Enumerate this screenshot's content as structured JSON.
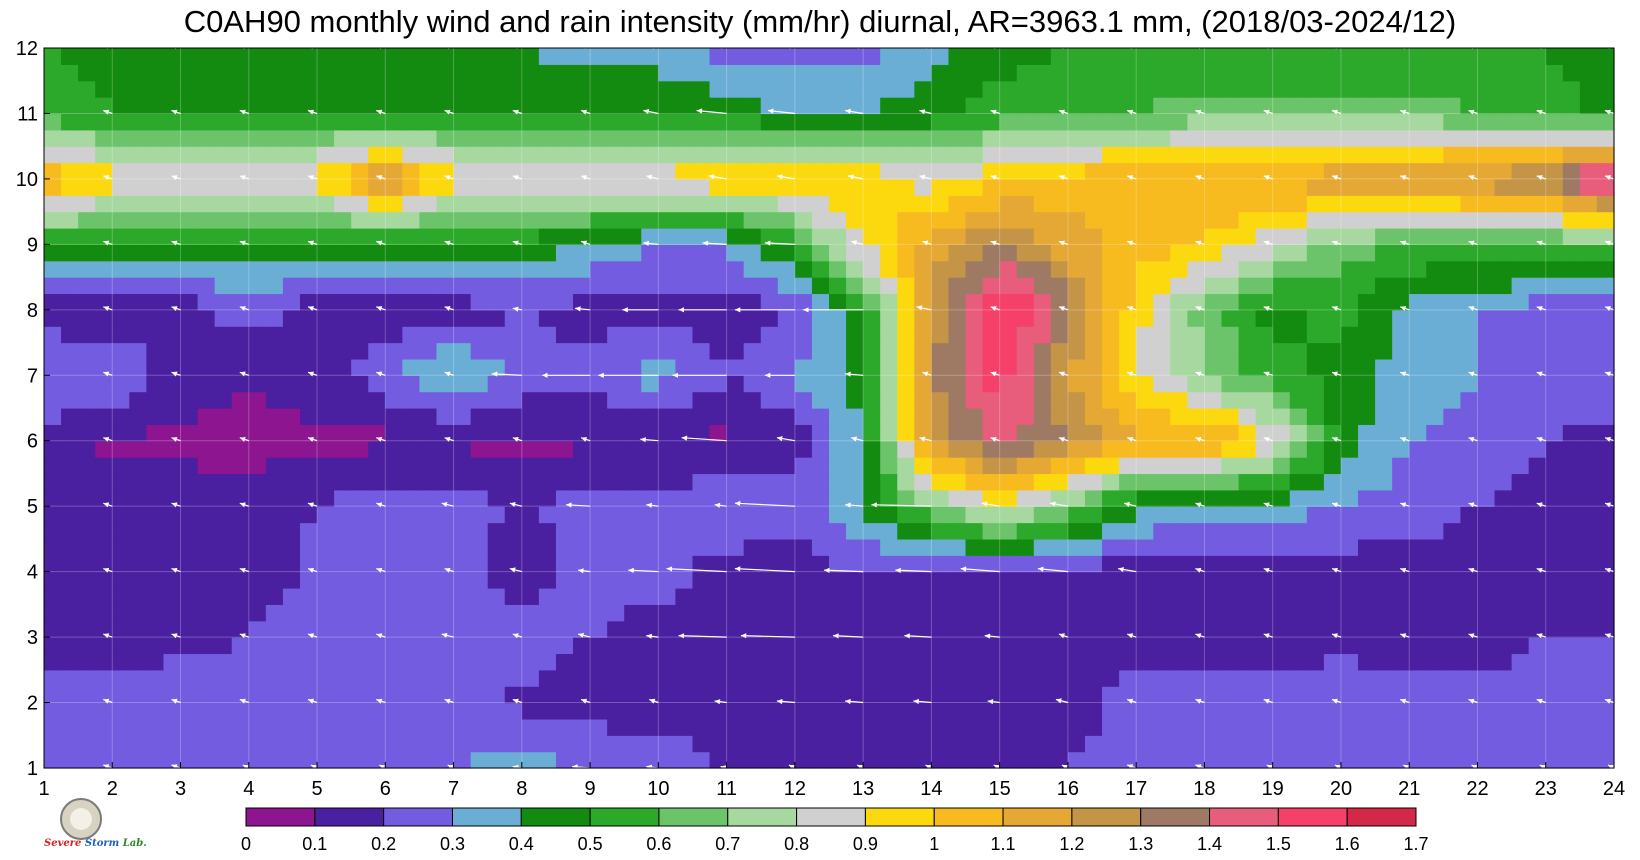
{
  "chart_data": {
    "type": "heatmap",
    "title": "C0AH90 monthly wind and rain intensity (mm/hr) diurnal, AR=3963.1 mm, (2018/03-2024/12)",
    "x_ticks": [
      "1",
      "2",
      "3",
      "4",
      "5",
      "6",
      "7",
      "8",
      "9",
      "10",
      "11",
      "12",
      "13",
      "14",
      "15",
      "16",
      "17",
      "18",
      "19",
      "20",
      "21",
      "22",
      "23",
      "24"
    ],
    "y_ticks": [
      "1",
      "2",
      "3",
      "4",
      "5",
      "6",
      "7",
      "8",
      "9",
      "10",
      "11",
      "12"
    ],
    "xlim": [
      1,
      24
    ],
    "ylim": [
      1,
      12
    ],
    "grid": true,
    "x_values": [
      1,
      2,
      3,
      4,
      5,
      6,
      7,
      8,
      9,
      10,
      11,
      12,
      13,
      14,
      15,
      16,
      17,
      18,
      19,
      20,
      21,
      22,
      23,
      24
    ],
    "y_values": [
      1,
      2,
      3,
      4,
      5,
      6,
      7,
      8,
      9,
      10,
      11,
      12
    ],
    "z": [
      [
        0.25,
        0.25,
        0.25,
        0.25,
        0.25,
        0.25,
        0.3,
        0.35,
        0.3,
        0.25,
        0.2,
        0.15,
        0.15,
        0.15,
        0.15,
        0.2,
        0.25,
        0.25,
        0.3,
        0.25,
        0.25,
        0.25,
        0.25,
        0.25
      ],
      [
        0.25,
        0.25,
        0.25,
        0.25,
        0.25,
        0.22,
        0.22,
        0.18,
        0.15,
        0.15,
        0.15,
        0.15,
        0.15,
        0.15,
        0.15,
        0.15,
        0.25,
        0.25,
        0.25,
        0.25,
        0.25,
        0.25,
        0.25,
        0.25
      ],
      [
        0.15,
        0.15,
        0.18,
        0.2,
        0.25,
        0.25,
        0.25,
        0.25,
        0.2,
        0.15,
        0.15,
        0.15,
        0.12,
        0.15,
        0.15,
        0.15,
        0.15,
        0.15,
        0.15,
        0.18,
        0.15,
        0.15,
        0.2,
        0.2
      ],
      [
        0.15,
        0.15,
        0.2,
        0.15,
        0.22,
        0.25,
        0.25,
        0.15,
        0.25,
        0.25,
        0.15,
        0.15,
        0.2,
        0.15,
        0.15,
        0.15,
        0.15,
        0.15,
        0.15,
        0.15,
        0.15,
        0.15,
        0.15,
        0.15
      ],
      [
        0.15,
        0.15,
        0.15,
        0.15,
        0.2,
        0.25,
        0.25,
        0.18,
        0.25,
        0.25,
        0.3,
        0.25,
        0.4,
        0.7,
        0.9,
        0.7,
        0.4,
        0.35,
        0.35,
        0.3,
        0.25,
        0.2,
        0.15,
        0.15
      ],
      [
        0.15,
        0.08,
        0.08,
        0.05,
        0.08,
        0.08,
        0.08,
        0.08,
        0.08,
        0.08,
        0.08,
        0.15,
        0.4,
        1.2,
        1.45,
        1.3,
        1.1,
        1.15,
        0.9,
        0.45,
        0.3,
        0.25,
        0.2,
        0.15
      ],
      [
        0.3,
        0.3,
        0.15,
        0.12,
        0.15,
        0.25,
        0.45,
        0.25,
        0.25,
        0.35,
        0.2,
        0.3,
        0.45,
        1.3,
        1.55,
        1.2,
        0.9,
        0.7,
        0.55,
        0.45,
        0.35,
        0.3,
        0.25,
        0.3
      ],
      [
        0.15,
        0.12,
        0.15,
        0.25,
        0.15,
        0.15,
        0.15,
        0.2,
        0.15,
        0.15,
        0.15,
        0.2,
        0.5,
        1.2,
        1.65,
        1.35,
        0.95,
        0.65,
        0.45,
        0.55,
        0.35,
        0.3,
        0.25,
        0.25
      ],
      [
        0.5,
        0.5,
        0.45,
        0.45,
        0.45,
        0.45,
        0.45,
        0.45,
        0.4,
        0.3,
        0.3,
        0.55,
        0.9,
        1.15,
        1.3,
        1.15,
        1.05,
        1.0,
        0.85,
        0.65,
        0.6,
        0.6,
        0.6,
        0.6
      ],
      [
        1.1,
        0.95,
        0.95,
        0.95,
        0.95,
        1.25,
        0.95,
        0.95,
        0.95,
        0.95,
        1.0,
        1.0,
        1.0,
        0.85,
        1.0,
        1.05,
        1.1,
        1.1,
        1.1,
        1.2,
        1.2,
        1.25,
        1.35,
        1.65
      ],
      [
        0.55,
        0.5,
        0.5,
        0.5,
        0.5,
        0.5,
        0.5,
        0.5,
        0.5,
        0.5,
        0.45,
        0.4,
        0.4,
        0.45,
        0.55,
        0.6,
        0.6,
        0.65,
        0.65,
        0.65,
        0.65,
        0.6,
        0.55,
        0.45
      ],
      [
        0.5,
        0.45,
        0.45,
        0.45,
        0.45,
        0.45,
        0.4,
        0.4,
        0.35,
        0.35,
        0.25,
        0.25,
        0.25,
        0.35,
        0.45,
        0.5,
        0.5,
        0.5,
        0.5,
        0.5,
        0.5,
        0.5,
        0.5,
        0.45
      ]
    ],
    "wind_u": [
      [
        -0.2,
        -0.3,
        -0.3,
        -0.2,
        -0.2,
        -0.2,
        -0.2,
        -0.3,
        -0.6,
        -0.4,
        -0.2,
        -0.2,
        -0.2,
        -0.2,
        -0.2,
        -0.2,
        -0.3,
        -0.3,
        -0.2,
        -0.2,
        -0.2,
        -0.2,
        -0.2,
        -0.2
      ],
      [
        -0.3,
        -0.3,
        -0.3,
        -0.3,
        -0.3,
        -0.3,
        -0.3,
        -0.3,
        -0.3,
        -0.3,
        -0.4,
        -0.6,
        -0.6,
        -0.6,
        -0.4,
        -0.4,
        -0.3,
        -0.3,
        -0.3,
        -0.3,
        -0.3,
        -0.3,
        -0.3,
        -0.3
      ],
      [
        -0.3,
        -0.3,
        -0.3,
        -0.3,
        -0.3,
        -0.3,
        -0.4,
        -0.3,
        -0.4,
        -0.4,
        -1.6,
        -1.8,
        -1.0,
        -0.9,
        -0.5,
        -0.3,
        -0.3,
        -0.3,
        -0.3,
        -0.3,
        -0.3,
        -0.3,
        -0.3,
        -0.3
      ],
      [
        -0.3,
        -0.3,
        -0.3,
        -0.3,
        -0.3,
        -0.3,
        -0.3,
        -0.4,
        -0.4,
        -1.0,
        -2.0,
        -2.0,
        -1.3,
        -1.2,
        -1.3,
        -1.0,
        -0.6,
        -0.3,
        -0.3,
        -0.3,
        -0.3,
        -0.3,
        -0.3,
        -0.3
      ],
      [
        -0.3,
        -0.3,
        -0.3,
        -0.3,
        -0.3,
        -0.3,
        -0.4,
        -0.4,
        -0.8,
        -0.4,
        -0.4,
        -2.0,
        -0.6,
        -2.0,
        -0.6,
        -0.6,
        -0.4,
        -0.3,
        -0.3,
        -0.3,
        -0.3,
        -0.3,
        -0.3,
        -0.3
      ],
      [
        -0.3,
        -0.3,
        -0.3,
        -0.3,
        -0.3,
        -0.3,
        -0.3,
        -0.3,
        -0.3,
        -0.6,
        -1.5,
        -0.6,
        -0.4,
        -0.4,
        -0.3,
        -0.3,
        -0.3,
        -0.3,
        -0.3,
        -0.3,
        -0.3,
        -0.3,
        -0.3,
        -0.3
      ],
      [
        -0.3,
        -0.3,
        -0.3,
        -0.3,
        -0.3,
        -0.3,
        -0.3,
        -1.0,
        -1.6,
        -2.0,
        -1.8,
        -1.0,
        -0.6,
        -0.3,
        -0.3,
        -0.3,
        -0.3,
        -0.3,
        -0.3,
        -0.3,
        -0.3,
        -0.3,
        -0.3,
        -0.3
      ],
      [
        -0.3,
        -0.3,
        -0.3,
        -0.3,
        -0.3,
        -0.3,
        -0.3,
        -0.3,
        -0.5,
        -1.2,
        -1.6,
        -2.0,
        -2.0,
        -0.5,
        -0.3,
        -0.3,
        -0.3,
        -0.3,
        -0.3,
        -0.3,
        -0.3,
        -0.3,
        -0.3,
        -0.3
      ],
      [
        -0.3,
        -0.3,
        -0.3,
        -0.3,
        -0.3,
        -0.3,
        -0.3,
        -0.3,
        -0.3,
        -0.5,
        -0.8,
        -1.0,
        -0.4,
        -0.3,
        -0.3,
        -0.3,
        -0.3,
        -0.3,
        -0.3,
        -0.3,
        -0.3,
        -0.3,
        -0.3,
        -0.3
      ],
      [
        -0.3,
        -0.3,
        -0.3,
        -0.3,
        -0.3,
        -0.3,
        -0.3,
        -0.3,
        -0.3,
        -0.4,
        -0.6,
        -0.6,
        -0.5,
        -0.4,
        -0.3,
        -0.3,
        -0.3,
        -0.3,
        -0.3,
        -0.3,
        -0.3,
        -0.3,
        -0.3,
        -0.3
      ],
      [
        -0.3,
        -0.3,
        -0.3,
        -0.3,
        -0.3,
        -0.3,
        -0.3,
        -0.3,
        -0.3,
        -0.5,
        -1.0,
        -0.9,
        -0.6,
        -0.4,
        -0.3,
        -0.3,
        -0.3,
        -0.3,
        -0.3,
        -0.3,
        -0.3,
        -0.3,
        -0.3,
        -0.3
      ],
      [
        -0.3,
        -0.3,
        -0.3,
        -0.3,
        -0.3,
        -0.3,
        -0.3,
        -0.3,
        -0.3,
        -0.3,
        -0.3,
        -0.3,
        -0.3,
        -0.3,
        -0.3,
        -0.3,
        -0.3,
        -0.3,
        -0.3,
        -0.3,
        -0.3,
        -0.3,
        -0.3,
        -0.3
      ]
    ],
    "wind_v": [
      [
        0.15,
        0.1,
        0.1,
        0.1,
        0.1,
        0.1,
        0.1,
        0.05,
        0.05,
        0.05,
        0.05,
        0.1,
        0.1,
        0.1,
        0.1,
        0.1,
        0.1,
        0.1,
        0.1,
        0.1,
        0.1,
        0.1,
        0.1,
        0.1
      ],
      [
        0.1,
        0.1,
        0.1,
        0.1,
        0.1,
        0.1,
        0.1,
        0.1,
        0.1,
        0.1,
        0.05,
        0.05,
        0.05,
        0.05,
        0.05,
        0.1,
        0.1,
        0.1,
        0.1,
        0.1,
        0.1,
        0.1,
        0.1,
        0.1
      ],
      [
        0.1,
        0.1,
        0.1,
        0.1,
        0.1,
        0.1,
        0.1,
        0.1,
        0.1,
        0.05,
        0.05,
        0.05,
        0.05,
        0.05,
        0.05,
        0.1,
        0.1,
        0.1,
        0.1,
        0.1,
        0.1,
        0.1,
        0.1,
        0.1
      ],
      [
        0.1,
        0.1,
        0.1,
        0.1,
        0.1,
        0.1,
        0.1,
        0.1,
        0.05,
        0.05,
        0.1,
        0.1,
        0.05,
        0.05,
        0.1,
        0.1,
        0.1,
        0.1,
        0.1,
        0.1,
        0.1,
        0.1,
        0.1,
        0.1
      ],
      [
        0.1,
        0.1,
        0.1,
        0.1,
        0.1,
        0.1,
        0.1,
        0.1,
        0.05,
        0.05,
        0.05,
        0.1,
        0.05,
        0.05,
        0.1,
        0.1,
        0.1,
        0.1,
        0.1,
        0.1,
        0.1,
        0.1,
        0.1,
        0.1
      ],
      [
        0.1,
        0.1,
        0.1,
        0.1,
        0.1,
        0.1,
        0.1,
        0.1,
        0.1,
        0.05,
        0.1,
        0.1,
        0.1,
        0.1,
        0.1,
        0.1,
        0.1,
        0.1,
        0.1,
        0.1,
        0.1,
        0.1,
        0.1,
        0.1
      ],
      [
        0.1,
        0.1,
        0.1,
        0.1,
        0.1,
        0.1,
        0.1,
        0.05,
        0.0,
        0.0,
        0.0,
        0.0,
        0.05,
        0.1,
        0.1,
        0.1,
        0.1,
        0.1,
        0.1,
        0.1,
        0.1,
        0.1,
        0.1,
        0.1
      ],
      [
        0.1,
        0.1,
        0.1,
        0.1,
        0.1,
        0.1,
        0.1,
        0.05,
        0.05,
        0.0,
        0.0,
        0.0,
        0.0,
        0.1,
        0.1,
        0.1,
        0.1,
        0.1,
        0.1,
        0.1,
        0.1,
        0.1,
        0.1,
        0.1
      ],
      [
        0.1,
        0.1,
        0.1,
        0.1,
        0.1,
        0.1,
        0.1,
        0.1,
        0.1,
        0.05,
        0.05,
        0.05,
        0.1,
        0.1,
        0.1,
        0.1,
        0.1,
        0.1,
        0.1,
        0.1,
        0.1,
        0.1,
        0.1,
        0.1
      ],
      [
        0.1,
        0.1,
        0.1,
        0.1,
        0.1,
        0.1,
        0.1,
        0.1,
        0.1,
        0.1,
        0.1,
        0.1,
        0.1,
        0.1,
        0.1,
        0.1,
        0.1,
        0.1,
        0.1,
        0.1,
        0.1,
        0.1,
        0.1,
        0.1
      ],
      [
        0.1,
        0.1,
        0.1,
        0.1,
        0.1,
        0.1,
        0.1,
        0.1,
        0.1,
        0.1,
        0.1,
        0.1,
        0.1,
        0.1,
        0.1,
        0.1,
        0.1,
        0.1,
        0.1,
        0.1,
        0.1,
        0.1,
        0.1,
        0.1
      ],
      [
        0.1,
        0.1,
        0.1,
        0.1,
        0.1,
        0.1,
        0.1,
        0.1,
        0.1,
        0.1,
        0.1,
        0.1,
        0.1,
        0.1,
        0.1,
        0.1,
        0.1,
        0.1,
        0.1,
        0.1,
        0.1,
        0.1,
        0.1,
        0.1
      ]
    ],
    "colorbar": {
      "levels": [
        "0",
        "0.1",
        "0.2",
        "0.3",
        "0.4",
        "0.5",
        "0.6",
        "0.7",
        "0.8",
        "0.9",
        "1",
        "1.1",
        "1.2",
        "1.3",
        "1.4",
        "1.5",
        "1.6",
        "1.7"
      ],
      "colors": [
        "#8e1590",
        "#4a1fa0",
        "#735ce0",
        "#6aaed6",
        "#138a10",
        "#2ca82a",
        "#6cc46a",
        "#a6d8a0",
        "#d0d0d0",
        "#fcd90f",
        "#f7bb1f",
        "#e5a835",
        "#c49447",
        "#9e7a64",
        "#e85c7c",
        "#f5406a",
        "#d42848"
      ]
    },
    "contour_color": "#f0a030"
  },
  "logo": {
    "text_1": "Severe",
    "text_2": "Storm",
    "text_3": "Lab."
  }
}
